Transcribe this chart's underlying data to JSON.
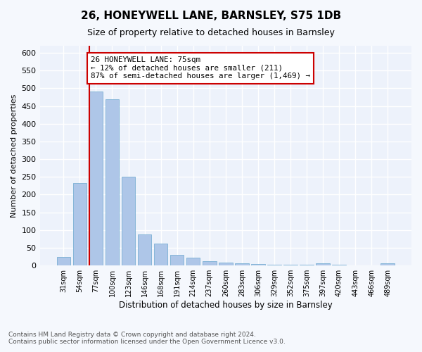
{
  "title": "26, HONEYWELL LANE, BARNSLEY, S75 1DB",
  "subtitle": "Size of property relative to detached houses in Barnsley",
  "xlabel": "Distribution of detached houses by size in Barnsley",
  "ylabel": "Number of detached properties",
  "footnote": "Contains HM Land Registry data © Crown copyright and database right 2024.\nContains public sector information licensed under the Open Government Licence v3.0.",
  "bar_color": "#aec6e8",
  "bar_edge_color": "#7aafd4",
  "marker_line_color": "#cc0000",
  "marker_box_color": "#cc0000",
  "categories": [
    "31sqm",
    "54sqm",
    "77sqm",
    "100sqm",
    "123sqm",
    "146sqm",
    "168sqm",
    "191sqm",
    "214sqm",
    "237sqm",
    "260sqm",
    "283sqm",
    "306sqm",
    "329sqm",
    "352sqm",
    "375sqm",
    "397sqm",
    "420sqm",
    "443sqm",
    "466sqm",
    "489sqm"
  ],
  "values": [
    25,
    233,
    490,
    470,
    250,
    88,
    62,
    30,
    22,
    12,
    8,
    6,
    4,
    3,
    2,
    2,
    7,
    2,
    1,
    1,
    6
  ],
  "property_bin_index": 2,
  "annotation_text": "26 HONEYWELL LANE: 75sqm\n← 12% of detached houses are smaller (211)\n87% of semi-detached houses are larger (1,469) →",
  "ylim": [
    0,
    620
  ],
  "yticks": [
    0,
    50,
    100,
    150,
    200,
    250,
    300,
    350,
    400,
    450,
    500,
    550,
    600
  ],
  "background_color": "#edf2fb",
  "fig_background_color": "#f5f8fd",
  "grid_color": "#ffffff",
  "title_fontsize": 11,
  "subtitle_fontsize": 9
}
